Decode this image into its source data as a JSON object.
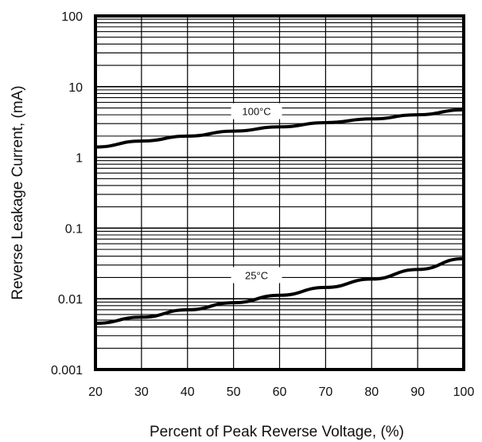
{
  "chart_data": {
    "type": "line",
    "xlabel": "Percent of Peak Reverse Voltage, (%)",
    "ylabel": "Reverse Leakage Current, (mA)",
    "xlim": [
      20,
      100
    ],
    "ylim": [
      0.001,
      100
    ],
    "yscale": "log",
    "grid": true,
    "x_ticks": [
      "20",
      "30",
      "40",
      "50",
      "60",
      "70",
      "80",
      "90",
      "100"
    ],
    "y_ticks": [
      "0.001",
      "0.01",
      "0.1",
      "1",
      "10",
      "100"
    ],
    "series": [
      {
        "name": "100°C",
        "x": [
          20,
          30,
          40,
          50,
          60,
          70,
          80,
          90,
          100
        ],
        "y": [
          1.4,
          1.7,
          2.0,
          2.35,
          2.7,
          3.1,
          3.5,
          4.0,
          4.7
        ]
      },
      {
        "name": "25°C",
        "x": [
          20,
          30,
          40,
          50,
          60,
          70,
          80,
          90,
          100
        ],
        "y": [
          0.0045,
          0.0055,
          0.007,
          0.0088,
          0.0112,
          0.0145,
          0.019,
          0.026,
          0.037
        ]
      }
    ]
  }
}
